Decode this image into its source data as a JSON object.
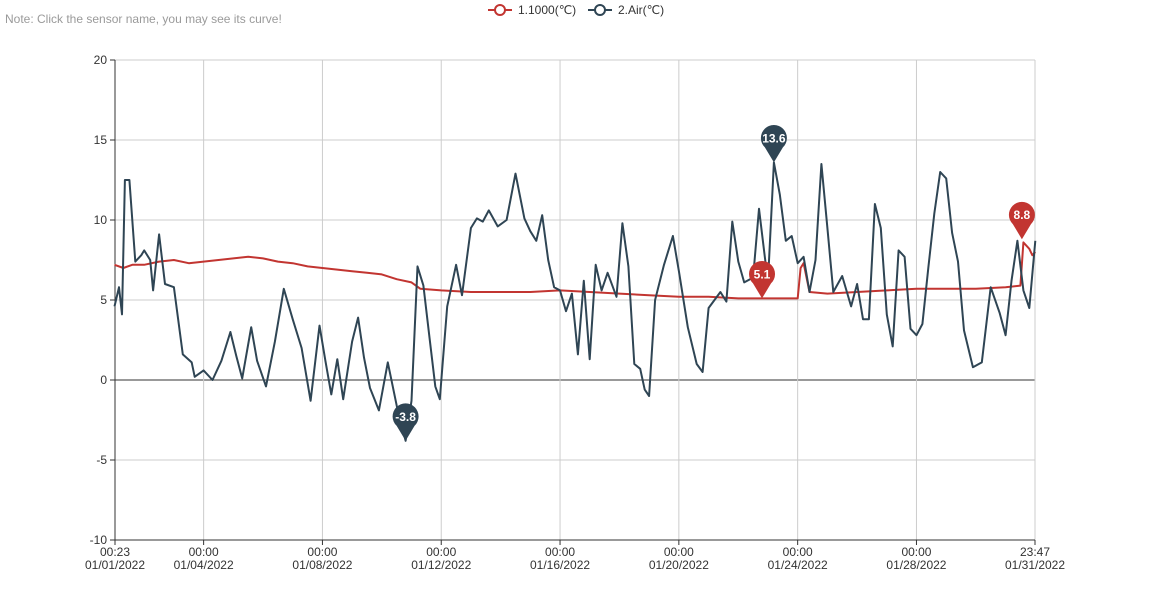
{
  "note": "Note: Click the sensor name, you may see its curve!",
  "colors": {
    "series_1": "#c23531",
    "series_2": "#2f4554",
    "grid": "#cccccc",
    "axis": "#333333"
  },
  "chart_data": {
    "type": "line",
    "grid": true,
    "legend_position": "top-center",
    "ylim": [
      -10,
      20
    ],
    "y_ticks": [
      "20",
      "15",
      "10",
      "5",
      "0",
      "-5",
      "-10"
    ],
    "x_range_days": [
      0.016,
      30.991
    ],
    "x_ticks": [
      {
        "day": 0.016,
        "time": "00:23",
        "date": "01/01/2022"
      },
      {
        "day": 3,
        "time": "00:00",
        "date": "01/04/2022"
      },
      {
        "day": 7,
        "time": "00:00",
        "date": "01/08/2022"
      },
      {
        "day": 11,
        "time": "00:00",
        "date": "01/12/2022"
      },
      {
        "day": 15,
        "time": "00:00",
        "date": "01/16/2022"
      },
      {
        "day": 19,
        "time": "00:00",
        "date": "01/20/2022"
      },
      {
        "day": 23,
        "time": "00:00",
        "date": "01/24/2022"
      },
      {
        "day": 27,
        "time": "00:00",
        "date": "01/28/2022"
      },
      {
        "day": 30.991,
        "time": "23:47",
        "date": "01/31/2022"
      }
    ],
    "series": [
      {
        "name": "1.1000(℃)",
        "points": [
          [
            0.0,
            7.2
          ],
          [
            0.3,
            7.0
          ],
          [
            0.6,
            7.2
          ],
          [
            1.0,
            7.2
          ],
          [
            1.5,
            7.4
          ],
          [
            2.0,
            7.5
          ],
          [
            2.5,
            7.3
          ],
          [
            3.0,
            7.4
          ],
          [
            3.5,
            7.5
          ],
          [
            4.0,
            7.6
          ],
          [
            4.5,
            7.7
          ],
          [
            5.0,
            7.6
          ],
          [
            5.5,
            7.4
          ],
          [
            6.0,
            7.3
          ],
          [
            6.5,
            7.1
          ],
          [
            7.0,
            7.0
          ],
          [
            7.5,
            6.9
          ],
          [
            8.0,
            6.8
          ],
          [
            8.5,
            6.7
          ],
          [
            9.0,
            6.6
          ],
          [
            9.5,
            6.3
          ],
          [
            10.0,
            6.1
          ],
          [
            10.3,
            5.7
          ],
          [
            11.0,
            5.6
          ],
          [
            12.0,
            5.5
          ],
          [
            13.0,
            5.5
          ],
          [
            14.0,
            5.5
          ],
          [
            15.0,
            5.6
          ],
          [
            16.0,
            5.5
          ],
          [
            17.0,
            5.4
          ],
          [
            18.0,
            5.3
          ],
          [
            19.0,
            5.2
          ],
          [
            20.0,
            5.2
          ],
          [
            21.0,
            5.1
          ],
          [
            22.0,
            5.1
          ],
          [
            23.0,
            5.1
          ],
          [
            23.1,
            7.0
          ],
          [
            23.2,
            7.3
          ],
          [
            23.4,
            5.5
          ],
          [
            24.0,
            5.4
          ],
          [
            25.0,
            5.5
          ],
          [
            26.0,
            5.6
          ],
          [
            27.0,
            5.7
          ],
          [
            28.0,
            5.7
          ],
          [
            29.0,
            5.7
          ],
          [
            30.0,
            5.8
          ],
          [
            30.5,
            5.9
          ],
          [
            30.6,
            8.6
          ],
          [
            30.8,
            8.2
          ],
          [
            30.9,
            7.8
          ],
          [
            31.0,
            8.0
          ]
        ]
      },
      {
        "name": "2.Air(℃)",
        "points": [
          [
            0.0,
            4.6
          ],
          [
            0.15,
            5.8
          ],
          [
            0.25,
            4.1
          ],
          [
            0.35,
            12.5
          ],
          [
            0.5,
            12.5
          ],
          [
            0.7,
            7.4
          ],
          [
            0.9,
            7.8
          ],
          [
            1.0,
            8.1
          ],
          [
            1.2,
            7.5
          ],
          [
            1.3,
            5.6
          ],
          [
            1.5,
            9.1
          ],
          [
            1.7,
            6.0
          ],
          [
            2.0,
            5.8
          ],
          [
            2.3,
            1.6
          ],
          [
            2.6,
            1.1
          ],
          [
            2.7,
            0.2
          ],
          [
            3.0,
            0.6
          ],
          [
            3.3,
            0.0
          ],
          [
            3.6,
            1.2
          ],
          [
            3.9,
            3.0
          ],
          [
            4.1,
            1.5
          ],
          [
            4.3,
            0.1
          ],
          [
            4.6,
            3.3
          ],
          [
            4.8,
            1.2
          ],
          [
            5.1,
            -0.4
          ],
          [
            5.4,
            2.4
          ],
          [
            5.7,
            5.7
          ],
          [
            6.0,
            3.8
          ],
          [
            6.3,
            2.0
          ],
          [
            6.6,
            -1.3
          ],
          [
            6.9,
            3.4
          ],
          [
            7.1,
            1.2
          ],
          [
            7.3,
            -0.9
          ],
          [
            7.5,
            1.3
          ],
          [
            7.7,
            -1.2
          ],
          [
            8.0,
            2.4
          ],
          [
            8.2,
            3.9
          ],
          [
            8.4,
            1.4
          ],
          [
            8.6,
            -0.5
          ],
          [
            8.9,
            -1.9
          ],
          [
            9.2,
            1.1
          ],
          [
            9.5,
            -1.6
          ],
          [
            9.8,
            -3.8
          ],
          [
            10.0,
            -1.3
          ],
          [
            10.2,
            7.1
          ],
          [
            10.4,
            5.9
          ],
          [
            10.6,
            2.7
          ],
          [
            10.8,
            -0.4
          ],
          [
            10.95,
            -1.2
          ],
          [
            11.2,
            4.6
          ],
          [
            11.5,
            7.2
          ],
          [
            11.7,
            5.3
          ],
          [
            12.0,
            9.5
          ],
          [
            12.2,
            10.1
          ],
          [
            12.4,
            9.9
          ],
          [
            12.6,
            10.6
          ],
          [
            12.9,
            9.6
          ],
          [
            13.2,
            10.0
          ],
          [
            13.5,
            12.9
          ],
          [
            13.8,
            10.1
          ],
          [
            14.0,
            9.3
          ],
          [
            14.2,
            8.7
          ],
          [
            14.4,
            10.3
          ],
          [
            14.6,
            7.5
          ],
          [
            14.8,
            5.8
          ],
          [
            15.0,
            5.6
          ],
          [
            15.2,
            4.3
          ],
          [
            15.4,
            5.4
          ],
          [
            15.6,
            1.6
          ],
          [
            15.8,
            6.2
          ],
          [
            16.0,
            1.3
          ],
          [
            16.2,
            7.2
          ],
          [
            16.4,
            5.6
          ],
          [
            16.6,
            6.7
          ],
          [
            16.9,
            5.2
          ],
          [
            17.1,
            9.8
          ],
          [
            17.3,
            7.1
          ],
          [
            17.5,
            1.0
          ],
          [
            17.7,
            0.7
          ],
          [
            17.85,
            -0.6
          ],
          [
            18.0,
            -1.0
          ],
          [
            18.2,
            5.0
          ],
          [
            18.5,
            7.2
          ],
          [
            18.8,
            9.0
          ],
          [
            19.0,
            6.8
          ],
          [
            19.3,
            3.3
          ],
          [
            19.6,
            1.0
          ],
          [
            19.8,
            0.5
          ],
          [
            20.0,
            4.5
          ],
          [
            20.2,
            5.0
          ],
          [
            20.4,
            5.5
          ],
          [
            20.6,
            4.9
          ],
          [
            20.8,
            9.9
          ],
          [
            21.0,
            7.4
          ],
          [
            21.2,
            6.1
          ],
          [
            21.5,
            6.4
          ],
          [
            21.7,
            10.7
          ],
          [
            21.9,
            7.6
          ],
          [
            22.0,
            6.2
          ],
          [
            22.2,
            13.6
          ],
          [
            22.4,
            11.6
          ],
          [
            22.6,
            8.7
          ],
          [
            22.8,
            9.0
          ],
          [
            23.0,
            7.3
          ],
          [
            23.2,
            7.7
          ],
          [
            23.4,
            5.5
          ],
          [
            23.6,
            7.5
          ],
          [
            23.8,
            13.5
          ],
          [
            24.0,
            9.5
          ],
          [
            24.2,
            5.5
          ],
          [
            24.5,
            6.5
          ],
          [
            24.8,
            4.6
          ],
          [
            25.0,
            6.0
          ],
          [
            25.2,
            3.8
          ],
          [
            25.4,
            3.8
          ],
          [
            25.6,
            11.0
          ],
          [
            25.8,
            9.5
          ],
          [
            26.0,
            4.1
          ],
          [
            26.2,
            2.1
          ],
          [
            26.4,
            8.1
          ],
          [
            26.6,
            7.7
          ],
          [
            26.8,
            3.2
          ],
          [
            27.0,
            2.8
          ],
          [
            27.2,
            3.5
          ],
          [
            27.4,
            7.0
          ],
          [
            27.6,
            10.4
          ],
          [
            27.8,
            13.0
          ],
          [
            28.0,
            12.6
          ],
          [
            28.2,
            9.2
          ],
          [
            28.4,
            7.4
          ],
          [
            28.6,
            3.1
          ],
          [
            28.9,
            0.8
          ],
          [
            29.2,
            1.1
          ],
          [
            29.5,
            5.8
          ],
          [
            29.8,
            4.2
          ],
          [
            30.0,
            2.8
          ],
          [
            30.2,
            6.2
          ],
          [
            30.4,
            8.7
          ],
          [
            30.6,
            5.6
          ],
          [
            30.8,
            4.5
          ],
          [
            31.0,
            8.7
          ]
        ]
      }
    ],
    "markers": [
      {
        "series": 0,
        "label": "5.1",
        "x": 21.8,
        "y": 5.1
      },
      {
        "series": 0,
        "label": "8.8",
        "x": 30.55,
        "y": 8.8
      },
      {
        "series": 1,
        "label": "13.6",
        "x": 22.2,
        "y": 13.6
      },
      {
        "series": 1,
        "label": "-3.8",
        "x": 9.8,
        "y": -3.8
      }
    ]
  }
}
